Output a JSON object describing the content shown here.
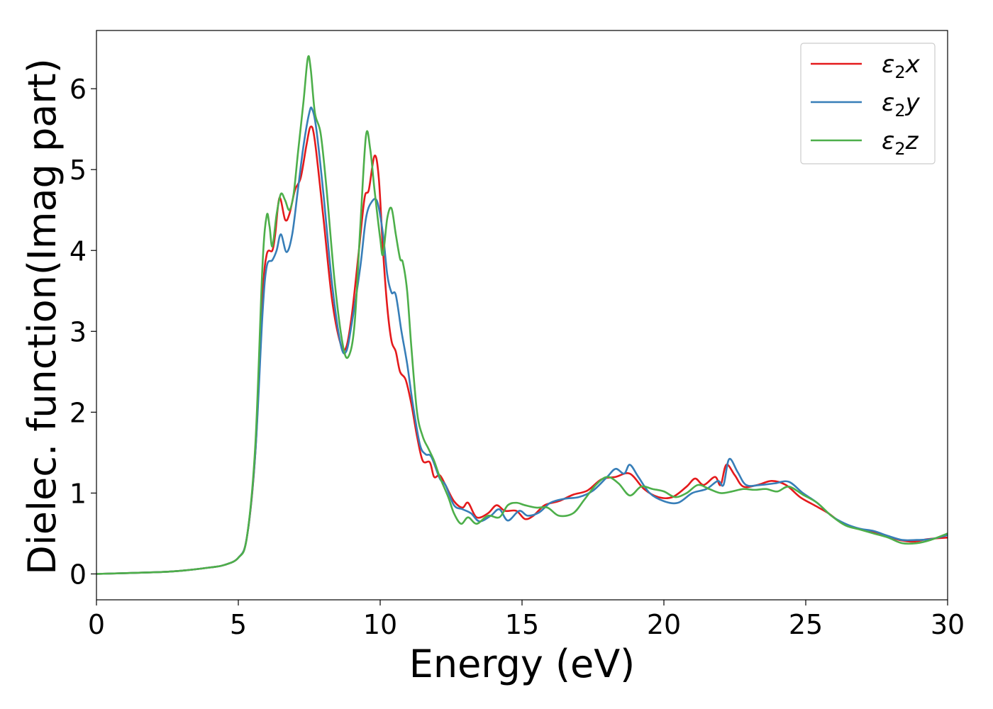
{
  "chart_data": {
    "type": "line",
    "xlabel": "Energy (eV)",
    "ylabel": "Dielec. function(Imag part)",
    "xlim": [
      0,
      30
    ],
    "ylim": [
      -0.32,
      6.72
    ],
    "xticks": [
      0,
      5,
      10,
      15,
      20,
      25,
      30
    ],
    "yticks": [
      0,
      1,
      2,
      3,
      4,
      5,
      6
    ],
    "grid": false,
    "legend_position": "top-right",
    "series": [
      {
        "name": "ε2x",
        "legend": {
          "symbol": "ε",
          "sub": "2",
          "var": "x"
        },
        "color": "#e41a1c",
        "points": [
          [
            0,
            0.0
          ],
          [
            2,
            0.02
          ],
          [
            3,
            0.04
          ],
          [
            4,
            0.08
          ],
          [
            4.5,
            0.11
          ],
          [
            5,
            0.2
          ],
          [
            5.3,
            0.45
          ],
          [
            5.6,
            1.5
          ],
          [
            5.85,
            3.4
          ],
          [
            6.0,
            3.95
          ],
          [
            6.2,
            4.0
          ],
          [
            6.3,
            4.2
          ],
          [
            6.45,
            4.65
          ],
          [
            6.65,
            4.38
          ],
          [
            6.8,
            4.45
          ],
          [
            7.0,
            4.75
          ],
          [
            7.2,
            4.9
          ],
          [
            7.4,
            5.3
          ],
          [
            7.55,
            5.53
          ],
          [
            7.7,
            5.35
          ],
          [
            8.0,
            4.4
          ],
          [
            8.3,
            3.4
          ],
          [
            8.6,
            2.85
          ],
          [
            8.8,
            2.8
          ],
          [
            9.0,
            3.2
          ],
          [
            9.25,
            4.0
          ],
          [
            9.45,
            4.65
          ],
          [
            9.6,
            4.75
          ],
          [
            9.8,
            5.17
          ],
          [
            9.95,
            4.9
          ],
          [
            10.1,
            4.0
          ],
          [
            10.25,
            3.3
          ],
          [
            10.4,
            2.88
          ],
          [
            10.55,
            2.75
          ],
          [
            10.7,
            2.5
          ],
          [
            10.9,
            2.4
          ],
          [
            11.1,
            2.1
          ],
          [
            11.3,
            1.7
          ],
          [
            11.5,
            1.4
          ],
          [
            11.75,
            1.38
          ],
          [
            11.9,
            1.2
          ],
          [
            12.1,
            1.22
          ],
          [
            12.3,
            1.1
          ],
          [
            12.6,
            0.9
          ],
          [
            12.9,
            0.82
          ],
          [
            13.1,
            0.88
          ],
          [
            13.4,
            0.7
          ],
          [
            13.8,
            0.75
          ],
          [
            14.1,
            0.85
          ],
          [
            14.4,
            0.78
          ],
          [
            14.8,
            0.78
          ],
          [
            15.1,
            0.68
          ],
          [
            15.4,
            0.72
          ],
          [
            15.8,
            0.85
          ],
          [
            16.3,
            0.9
          ],
          [
            16.8,
            0.98
          ],
          [
            17.3,
            1.03
          ],
          [
            17.8,
            1.17
          ],
          [
            18.3,
            1.2
          ],
          [
            18.8,
            1.24
          ],
          [
            19.3,
            1.05
          ],
          [
            19.8,
            0.95
          ],
          [
            20.3,
            0.95
          ],
          [
            20.8,
            1.08
          ],
          [
            21.1,
            1.18
          ],
          [
            21.4,
            1.1
          ],
          [
            21.8,
            1.2
          ],
          [
            22.0,
            1.1
          ],
          [
            22.2,
            1.35
          ],
          [
            22.5,
            1.22
          ],
          [
            22.8,
            1.08
          ],
          [
            23.3,
            1.1
          ],
          [
            23.8,
            1.15
          ],
          [
            24.3,
            1.1
          ],
          [
            24.8,
            0.95
          ],
          [
            25.3,
            0.85
          ],
          [
            25.8,
            0.75
          ],
          [
            26.3,
            0.62
          ],
          [
            26.8,
            0.56
          ],
          [
            27.3,
            0.53
          ],
          [
            27.8,
            0.48
          ],
          [
            28.3,
            0.42
          ],
          [
            28.8,
            0.4
          ],
          [
            29.3,
            0.43
          ],
          [
            30,
            0.45
          ]
        ]
      },
      {
        "name": "ε2y",
        "legend": {
          "symbol": "ε",
          "sub": "2",
          "var": "y"
        },
        "color": "#377eb8",
        "points": [
          [
            0,
            0.0
          ],
          [
            2,
            0.02
          ],
          [
            3,
            0.04
          ],
          [
            4,
            0.08
          ],
          [
            4.5,
            0.11
          ],
          [
            5,
            0.2
          ],
          [
            5.3,
            0.45
          ],
          [
            5.6,
            1.5
          ],
          [
            5.85,
            3.2
          ],
          [
            6.0,
            3.8
          ],
          [
            6.2,
            3.88
          ],
          [
            6.35,
            4.0
          ],
          [
            6.5,
            4.2
          ],
          [
            6.7,
            3.98
          ],
          [
            6.9,
            4.2
          ],
          [
            7.1,
            4.75
          ],
          [
            7.3,
            5.3
          ],
          [
            7.5,
            5.7
          ],
          [
            7.6,
            5.75
          ],
          [
            7.75,
            5.5
          ],
          [
            8.0,
            4.7
          ],
          [
            8.3,
            3.6
          ],
          [
            8.6,
            2.85
          ],
          [
            8.8,
            2.75
          ],
          [
            9.0,
            3.1
          ],
          [
            9.3,
            3.8
          ],
          [
            9.5,
            4.4
          ],
          [
            9.7,
            4.6
          ],
          [
            9.9,
            4.6
          ],
          [
            10.1,
            4.2
          ],
          [
            10.25,
            3.7
          ],
          [
            10.4,
            3.48
          ],
          [
            10.55,
            3.45
          ],
          [
            10.75,
            3.0
          ],
          [
            10.95,
            2.6
          ],
          [
            11.15,
            2.1
          ],
          [
            11.4,
            1.6
          ],
          [
            11.6,
            1.48
          ],
          [
            11.8,
            1.45
          ],
          [
            12.1,
            1.18
          ],
          [
            12.3,
            1.1
          ],
          [
            12.6,
            0.85
          ],
          [
            12.9,
            0.8
          ],
          [
            13.2,
            0.75
          ],
          [
            13.5,
            0.65
          ],
          [
            13.9,
            0.72
          ],
          [
            14.2,
            0.8
          ],
          [
            14.5,
            0.66
          ],
          [
            14.9,
            0.78
          ],
          [
            15.2,
            0.72
          ],
          [
            15.6,
            0.76
          ],
          [
            16.0,
            0.88
          ],
          [
            16.5,
            0.93
          ],
          [
            17.0,
            0.95
          ],
          [
            17.5,
            1.03
          ],
          [
            18.0,
            1.2
          ],
          [
            18.3,
            1.3
          ],
          [
            18.6,
            1.24
          ],
          [
            18.8,
            1.35
          ],
          [
            19.1,
            1.2
          ],
          [
            19.5,
            1.0
          ],
          [
            20.0,
            0.9
          ],
          [
            20.5,
            0.88
          ],
          [
            21.0,
            1.0
          ],
          [
            21.5,
            1.05
          ],
          [
            21.9,
            1.15
          ],
          [
            22.1,
            1.1
          ],
          [
            22.3,
            1.42
          ],
          [
            22.6,
            1.26
          ],
          [
            22.9,
            1.1
          ],
          [
            23.4,
            1.1
          ],
          [
            23.9,
            1.12
          ],
          [
            24.4,
            1.14
          ],
          [
            24.9,
            1.0
          ],
          [
            25.4,
            0.88
          ],
          [
            25.9,
            0.72
          ],
          [
            26.4,
            0.62
          ],
          [
            26.9,
            0.56
          ],
          [
            27.4,
            0.53
          ],
          [
            27.9,
            0.47
          ],
          [
            28.4,
            0.42
          ],
          [
            28.9,
            0.42
          ],
          [
            29.4,
            0.43
          ],
          [
            30,
            0.48
          ]
        ]
      },
      {
        "name": "ε2z",
        "legend": {
          "symbol": "ε",
          "sub": "2",
          "var": "z"
        },
        "color": "#4daf4a",
        "points": [
          [
            0,
            0.0
          ],
          [
            2,
            0.02
          ],
          [
            3,
            0.04
          ],
          [
            4,
            0.08
          ],
          [
            4.5,
            0.11
          ],
          [
            5,
            0.2
          ],
          [
            5.3,
            0.45
          ],
          [
            5.6,
            1.6
          ],
          [
            5.85,
            3.8
          ],
          [
            6.0,
            4.43
          ],
          [
            6.1,
            4.3
          ],
          [
            6.2,
            4.05
          ],
          [
            6.35,
            4.45
          ],
          [
            6.5,
            4.7
          ],
          [
            6.65,
            4.62
          ],
          [
            6.8,
            4.5
          ],
          [
            6.95,
            4.7
          ],
          [
            7.1,
            5.2
          ],
          [
            7.3,
            5.85
          ],
          [
            7.45,
            6.38
          ],
          [
            7.55,
            6.25
          ],
          [
            7.7,
            5.7
          ],
          [
            7.9,
            5.45
          ],
          [
            8.1,
            4.8
          ],
          [
            8.4,
            3.6
          ],
          [
            8.7,
            2.8
          ],
          [
            8.9,
            2.7
          ],
          [
            9.1,
            3.1
          ],
          [
            9.3,
            4.3
          ],
          [
            9.5,
            5.42
          ],
          [
            9.65,
            5.25
          ],
          [
            9.8,
            4.75
          ],
          [
            10.0,
            4.15
          ],
          [
            10.1,
            3.95
          ],
          [
            10.25,
            4.4
          ],
          [
            10.4,
            4.52
          ],
          [
            10.55,
            4.2
          ],
          [
            10.7,
            3.9
          ],
          [
            10.8,
            3.85
          ],
          [
            10.95,
            3.5
          ],
          [
            11.1,
            2.8
          ],
          [
            11.3,
            2.0
          ],
          [
            11.5,
            1.7
          ],
          [
            11.7,
            1.55
          ],
          [
            11.9,
            1.4
          ],
          [
            12.1,
            1.2
          ],
          [
            12.4,
            0.95
          ],
          [
            12.6,
            0.75
          ],
          [
            12.85,
            0.62
          ],
          [
            13.1,
            0.7
          ],
          [
            13.4,
            0.62
          ],
          [
            13.8,
            0.72
          ],
          [
            14.2,
            0.7
          ],
          [
            14.5,
            0.85
          ],
          [
            14.8,
            0.88
          ],
          [
            15.1,
            0.85
          ],
          [
            15.5,
            0.82
          ],
          [
            15.9,
            0.82
          ],
          [
            16.3,
            0.72
          ],
          [
            16.8,
            0.75
          ],
          [
            17.2,
            0.92
          ],
          [
            17.6,
            1.1
          ],
          [
            18.0,
            1.2
          ],
          [
            18.4,
            1.12
          ],
          [
            18.8,
            0.97
          ],
          [
            19.2,
            1.08
          ],
          [
            19.6,
            1.05
          ],
          [
            20.0,
            1.02
          ],
          [
            20.4,
            0.95
          ],
          [
            20.8,
            1.0
          ],
          [
            21.2,
            1.1
          ],
          [
            21.6,
            1.05
          ],
          [
            22.0,
            1.0
          ],
          [
            22.4,
            1.02
          ],
          [
            22.8,
            1.05
          ],
          [
            23.2,
            1.04
          ],
          [
            23.6,
            1.05
          ],
          [
            24.0,
            1.02
          ],
          [
            24.4,
            1.08
          ],
          [
            24.9,
            0.98
          ],
          [
            25.4,
            0.88
          ],
          [
            25.9,
            0.72
          ],
          [
            26.4,
            0.6
          ],
          [
            26.9,
            0.55
          ],
          [
            27.4,
            0.5
          ],
          [
            27.9,
            0.45
          ],
          [
            28.4,
            0.38
          ],
          [
            28.9,
            0.38
          ],
          [
            29.4,
            0.42
          ],
          [
            30,
            0.5
          ]
        ]
      }
    ]
  }
}
